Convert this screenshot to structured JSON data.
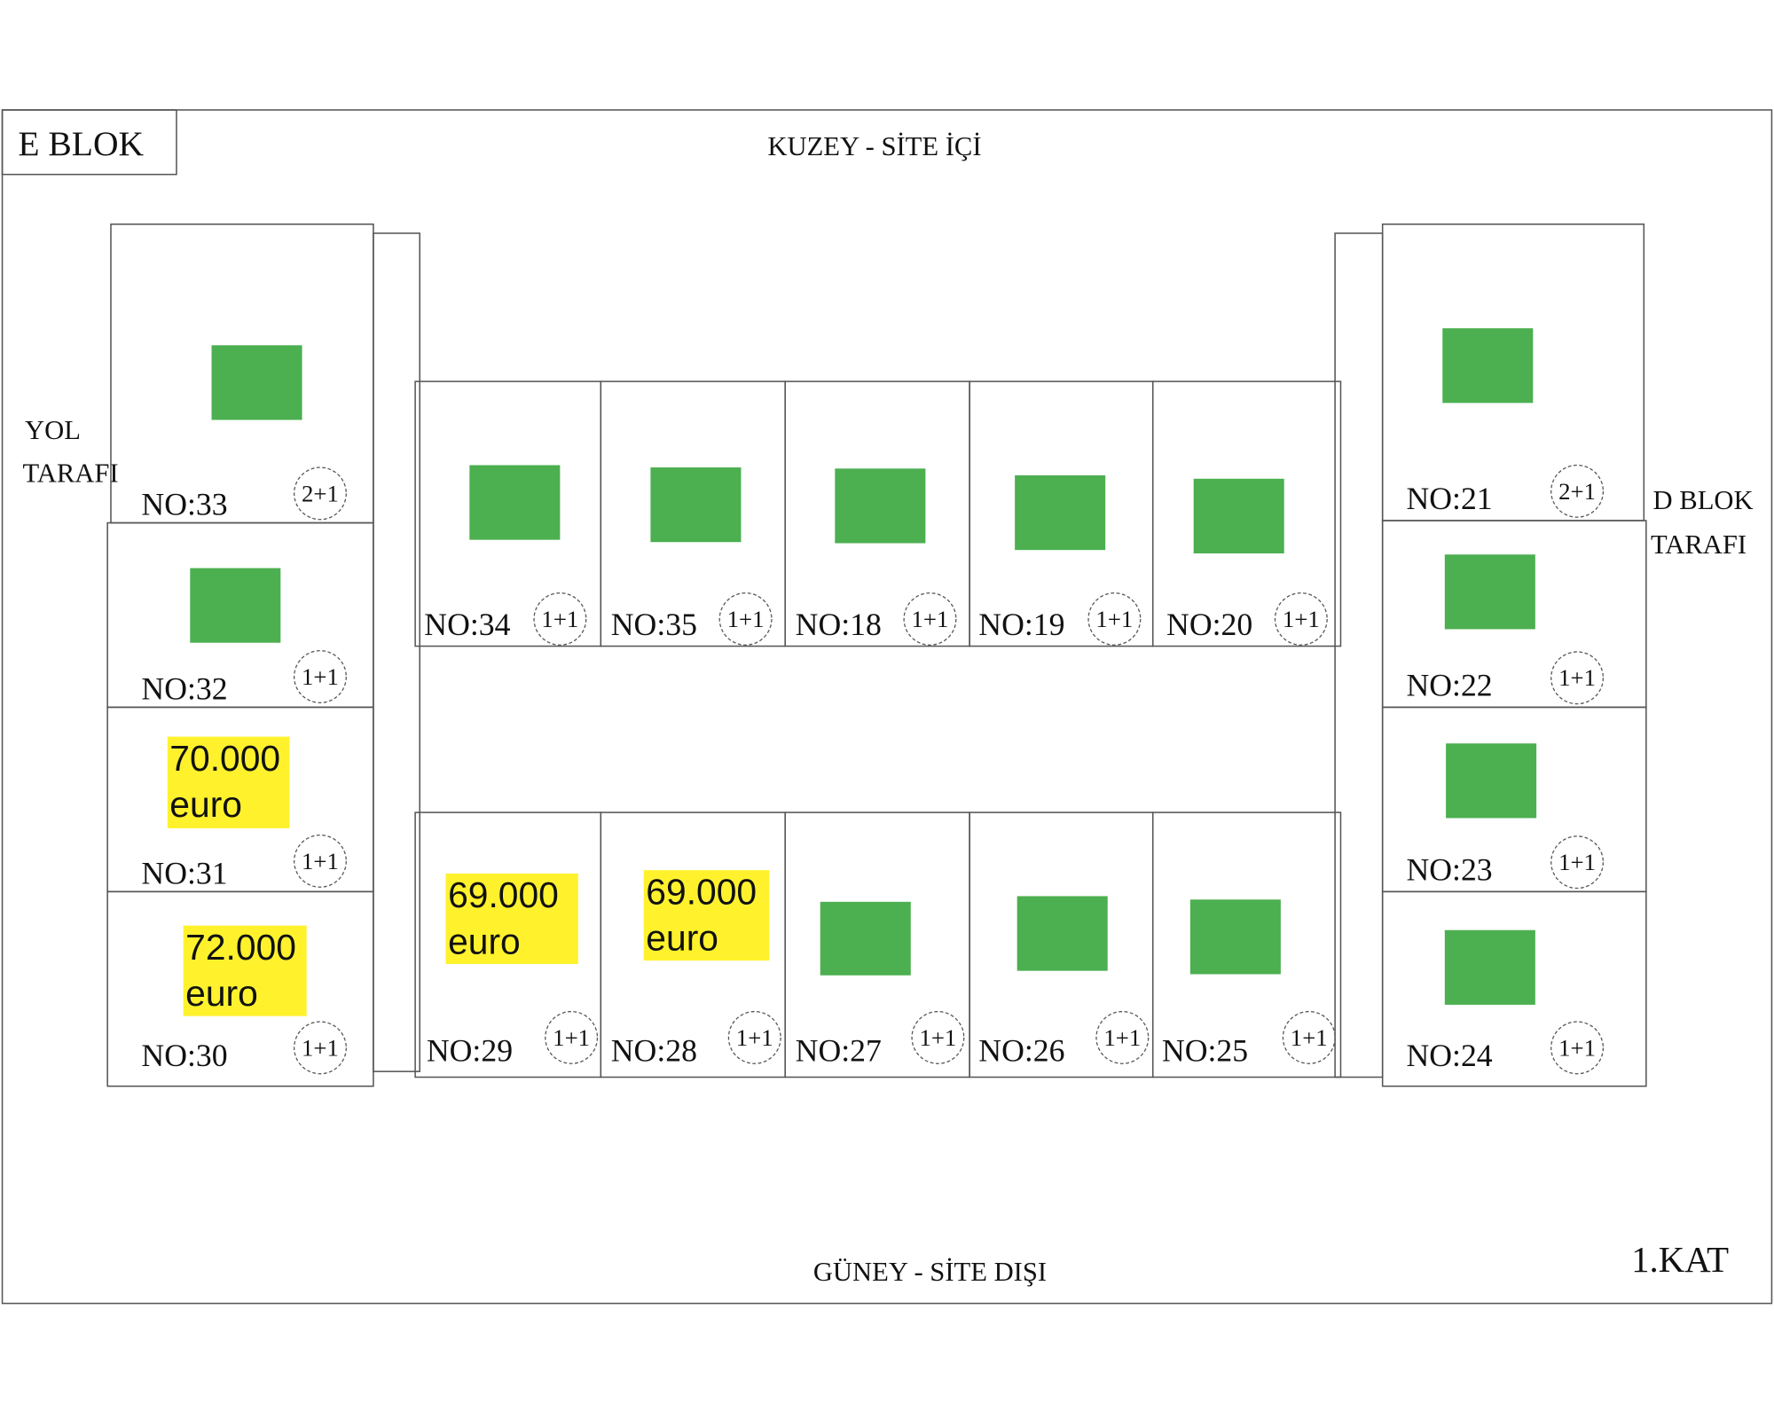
{
  "header": {
    "block": "E BLOK",
    "north": "KUZEY - SİTE İÇİ",
    "south": "GÜNEY - SİTE DIŞI",
    "floor": "1.KAT",
    "west": [
      "YOL",
      "TARAFI"
    ],
    "east": [
      "D BLOK",
      "TARAFI"
    ]
  },
  "units": [
    {
      "label": "NO:33",
      "type": "2+1"
    },
    {
      "label": "NO:32",
      "type": "1+1"
    },
    {
      "label": "NO:31",
      "type": "1+1",
      "price": "70.000",
      "currency": "euro"
    },
    {
      "label": "NO:30",
      "type": "1+1",
      "price": "72.000",
      "currency": "euro"
    },
    {
      "label": "NO:34",
      "type": "1+1"
    },
    {
      "label": "NO:35",
      "type": "1+1"
    },
    {
      "label": "NO:18",
      "type": "1+1"
    },
    {
      "label": "NO:19",
      "type": "1+1"
    },
    {
      "label": "NO:20",
      "type": "1+1"
    },
    {
      "label": "NO:29",
      "type": "1+1",
      "price": "69.000",
      "currency": "euro"
    },
    {
      "label": "NO:28",
      "type": "1+1",
      "price": "69.000",
      "currency": "euro"
    },
    {
      "label": "NO:27",
      "type": "1+1"
    },
    {
      "label": "NO:26",
      "type": "1+1"
    },
    {
      "label": "NO:25",
      "type": "1+1"
    },
    {
      "label": "NO:21",
      "type": "2+1"
    },
    {
      "label": "NO:22",
      "type": "1+1"
    },
    {
      "label": "NO:23",
      "type": "1+1"
    },
    {
      "label": "NO:24",
      "type": "1+1"
    }
  ]
}
